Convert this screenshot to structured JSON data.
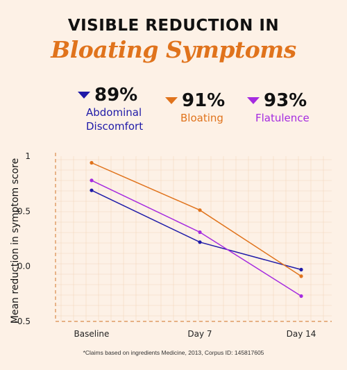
{
  "header": {
    "title_line1": "VISIBLE REDUCTION IN",
    "title_line2": "Bloating Symptoms"
  },
  "stats": [
    {
      "value": "89%",
      "label_lines": [
        "Abdominal",
        "Discomfort"
      ],
      "color": "#1f1aa8"
    },
    {
      "value": "91%",
      "label_lines": [
        "Bloating"
      ],
      "color": "#e0731c"
    },
    {
      "value": "93%",
      "label_lines": [
        "Flatulence"
      ],
      "color": "#a52be0"
    }
  ],
  "chart_data": {
    "type": "line",
    "ylabel": "Mean reduction in symptom score",
    "x": [
      "Baseline",
      "Day 7",
      "Day 14"
    ],
    "yticks": [
      "1",
      "0.5",
      "0.0",
      "-0.5"
    ],
    "ylim": [
      -0.5,
      1
    ],
    "grid": true,
    "series": [
      {
        "name": "Abdominal Discomfort",
        "color": "#1f1aa8",
        "values": [
          0.69,
          0.22,
          -0.03
        ]
      },
      {
        "name": "Bloating",
        "color": "#e0731c",
        "values": [
          0.94,
          0.51,
          -0.09
        ]
      },
      {
        "name": "Flatulence",
        "color": "#a52be0",
        "values": [
          0.78,
          0.31,
          -0.27
        ]
      }
    ]
  },
  "footnote": "*Claims based on ingredients Medicine, 2013, Corpus ID: 145817605"
}
